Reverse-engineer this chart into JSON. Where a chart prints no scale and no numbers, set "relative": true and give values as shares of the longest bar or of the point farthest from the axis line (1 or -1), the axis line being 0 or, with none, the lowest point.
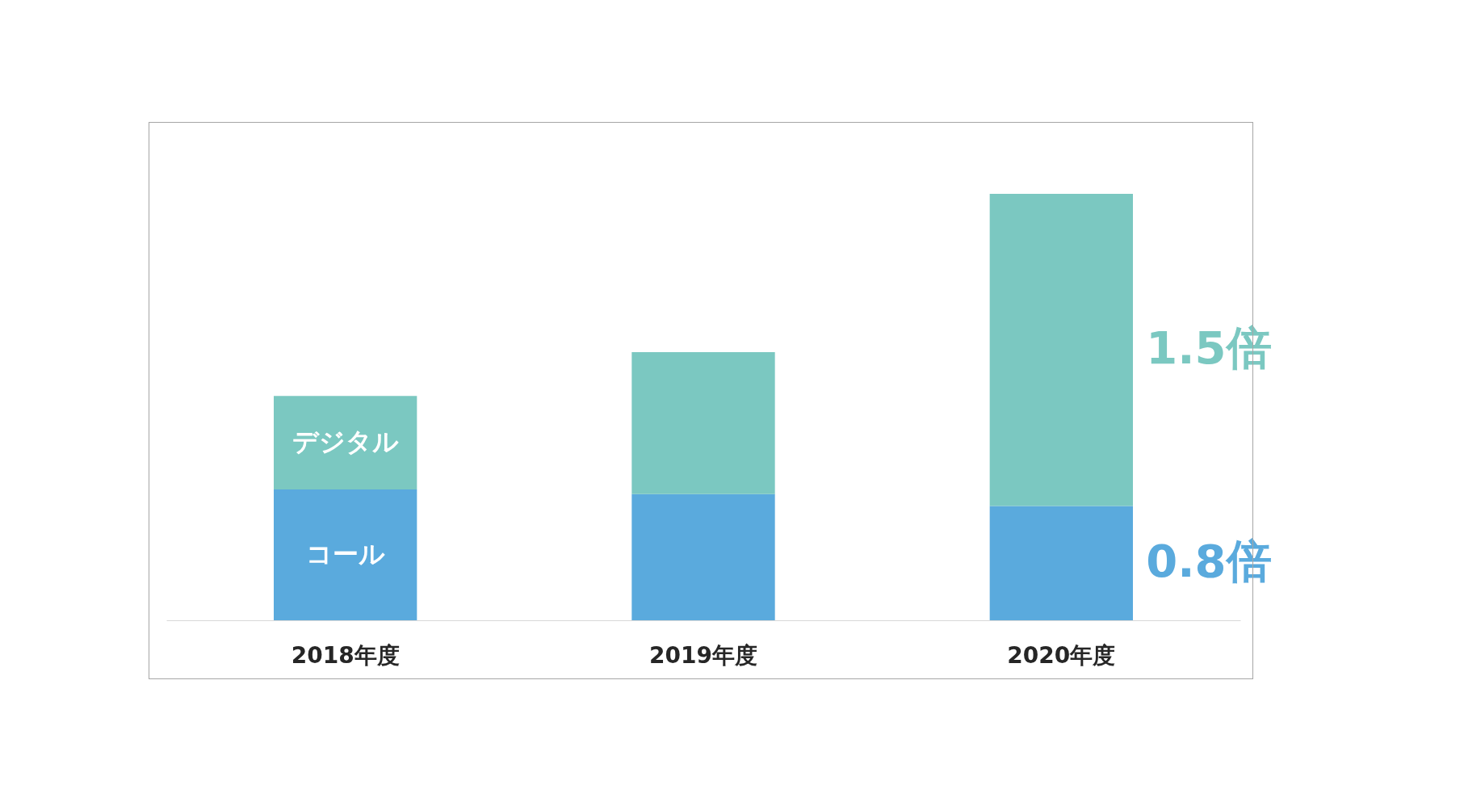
{
  "chart_data": {
    "type": "bar",
    "stacked": true,
    "relative": true,
    "categories": [
      "2018年度",
      "2019年度",
      "2020年度"
    ],
    "series": [
      {
        "name": "コール",
        "color": "#5aaadd",
        "values": [
          0.307,
          0.296,
          0.268
        ]
      },
      {
        "name": "デジタル",
        "color": "#7bc8c1",
        "values": [
          0.219,
          0.333,
          0.732
        ]
      }
    ],
    "annotations": [
      "1.5倍",
      "0.8倍"
    ],
    "grid": false,
    "legend": false
  }
}
